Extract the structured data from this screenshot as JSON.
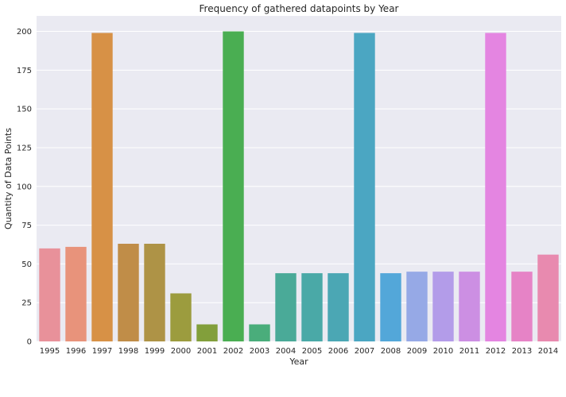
{
  "chart_data": {
    "type": "bar",
    "title": "Frequency of gathered datapoints by Year",
    "xlabel": "Year",
    "ylabel": "Quantity of Data Points",
    "categories": [
      "1995",
      "1996",
      "1997",
      "1998",
      "1999",
      "2000",
      "2001",
      "2002",
      "2003",
      "2004",
      "2005",
      "2006",
      "2007",
      "2008",
      "2009",
      "2010",
      "2011",
      "2012",
      "2013",
      "2014"
    ],
    "values": [
      60,
      61,
      199,
      63,
      63,
      31,
      11,
      200,
      11,
      44,
      44,
      44,
      199,
      44,
      45,
      45,
      45,
      199,
      45,
      56
    ],
    "colors": [
      "#e8919a",
      "#e8937b",
      "#d79146",
      "#c08d48",
      "#ae9346",
      "#9c9c3e",
      "#829f3b",
      "#4aae52",
      "#4aad7b",
      "#4aaa98",
      "#4aa9a7",
      "#4ba7b4",
      "#4ba6c2",
      "#53a7d9",
      "#96a9e6",
      "#b39ce9",
      "#cc8fe3",
      "#e485e1",
      "#e683c6",
      "#e88aaf"
    ],
    "yticks": [
      0,
      25,
      50,
      75,
      100,
      125,
      150,
      175,
      200
    ],
    "ylim": [
      0,
      210
    ],
    "grid": true,
    "background": "#eaeaf2"
  }
}
